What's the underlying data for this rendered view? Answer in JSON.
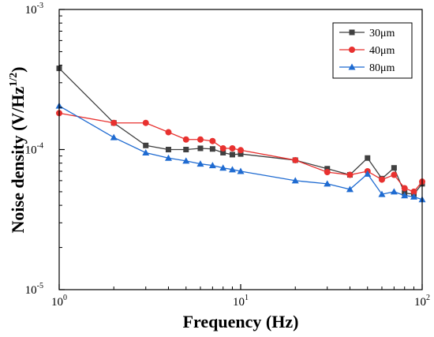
{
  "chart_data": {
    "type": "line",
    "xlabel": "Frequency (Hz)",
    "ylabel_main": "Noise density (V/Hz",
    "ylabel_sup": "1/2",
    "ylabel_close": ")",
    "xscale": "log",
    "yscale": "log",
    "xlim": [
      1,
      100
    ],
    "ylim": [
      1e-05,
      0.001
    ],
    "grid": false,
    "legend_position": "top-right",
    "x_ticks": [
      {
        "value": 1,
        "base": "10",
        "exp": "0"
      },
      {
        "value": 10,
        "base": "10",
        "exp": "1"
      },
      {
        "value": 100,
        "base": "10",
        "exp": "2"
      }
    ],
    "y_ticks": [
      {
        "value": 1e-05,
        "base": "10",
        "exp": "-5"
      },
      {
        "value": 0.0001,
        "base": "10",
        "exp": "-4"
      },
      {
        "value": 0.001,
        "base": "10",
        "exp": "-3"
      }
    ],
    "series": [
      {
        "name": "30μm",
        "color": "#404040",
        "marker": "square",
        "x": [
          1,
          2,
          3,
          4,
          5,
          6,
          7,
          8,
          9,
          10,
          20,
          30,
          40,
          50,
          60,
          70,
          80,
          90,
          100
        ],
        "y": [
          0.00038,
          0.000155,
          0.000107,
          0.0001,
          0.0001,
          0.000102,
          0.000101,
          9.5e-05,
          9.2e-05,
          9.3e-05,
          8.4e-05,
          7.3e-05,
          6.6e-05,
          8.7e-05,
          6.2e-05,
          7.4e-05,
          4.9e-05,
          4.8e-05,
          5.7e-05
        ]
      },
      {
        "name": "40μm",
        "color": "#e8312f",
        "marker": "circle",
        "x": [
          1,
          2,
          3,
          4,
          5,
          6,
          7,
          8,
          9,
          10,
          20,
          30,
          40,
          50,
          60,
          70,
          80,
          90,
          100
        ],
        "y": [
          0.000182,
          0.000155,
          0.000155,
          0.000133,
          0.000118,
          0.000118,
          0.000115,
          0.000102,
          0.000102,
          9.9e-05,
          8.4e-05,
          6.9e-05,
          6.6e-05,
          7e-05,
          6.1e-05,
          6.6e-05,
          5.3e-05,
          5e-05,
          5.9e-05
        ]
      },
      {
        "name": "80μm",
        "color": "#1f6bd1",
        "marker": "triangle",
        "x": [
          1,
          2,
          3,
          4,
          5,
          6,
          7,
          8,
          9,
          10,
          20,
          30,
          40,
          50,
          60,
          70,
          80,
          90,
          100
        ],
        "y": [
          0.000205,
          0.000122,
          9.5e-05,
          8.7e-05,
          8.3e-05,
          7.9e-05,
          7.7e-05,
          7.4e-05,
          7.2e-05,
          7e-05,
          6e-05,
          5.7e-05,
          5.2e-05,
          6.7e-05,
          4.8e-05,
          5e-05,
          4.7e-05,
          4.6e-05,
          4.4e-05
        ]
      }
    ]
  }
}
